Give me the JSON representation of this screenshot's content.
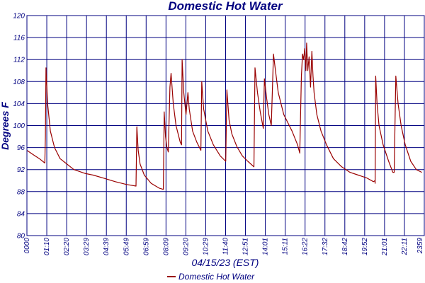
{
  "chart_data": {
    "type": "line",
    "title": "Domestic Hot Water",
    "xlabel": "04/15/23 (EST)",
    "ylabel": "Degrees F",
    "ylim": [
      80,
      120
    ],
    "yticks": [
      "80",
      "84",
      "88",
      "92",
      "96",
      "100",
      "104",
      "108",
      "112",
      "116",
      "120"
    ],
    "xlim": [
      "00:00",
      "23:59"
    ],
    "xtick_labels": [
      "0000",
      "01:10",
      "02:20",
      "03:29",
      "04:39",
      "05:49",
      "06:59",
      "08:09",
      "09:20",
      "10:29",
      "11:40",
      "12:51",
      "14:01",
      "15:11",
      "16:22",
      "17:32",
      "18:42",
      "19:52",
      "21:01",
      "22:11",
      "2359"
    ],
    "grid": true,
    "legend": "bottom-center",
    "colors": {
      "line": "#990000",
      "grid": "#000080",
      "text": "#000080"
    },
    "series": [
      {
        "name": "Domestic Hot Water",
        "points": [
          [
            "00:00",
            95.5
          ],
          [
            "00:20",
            94.8
          ],
          [
            "00:45",
            94
          ],
          [
            "01:05",
            93.2
          ],
          [
            "01:07",
            98
          ],
          [
            "01:09",
            110.5
          ],
          [
            "01:15",
            104
          ],
          [
            "01:25",
            99
          ],
          [
            "01:40",
            96
          ],
          [
            "02:00",
            94
          ],
          [
            "02:20",
            93.2
          ],
          [
            "02:50",
            92
          ],
          [
            "03:30",
            91.3
          ],
          [
            "04:00",
            91
          ],
          [
            "04:40",
            90.4
          ],
          [
            "05:20",
            89.8
          ],
          [
            "06:00",
            89.3
          ],
          [
            "06:35",
            89
          ],
          [
            "06:38",
            99.8
          ],
          [
            "06:43",
            95.5
          ],
          [
            "06:50",
            93
          ],
          [
            "07:05",
            91
          ],
          [
            "07:30",
            89.5
          ],
          [
            "08:00",
            88.6
          ],
          [
            "08:14",
            88.4
          ],
          [
            "08:17",
            102.5
          ],
          [
            "08:22",
            98
          ],
          [
            "08:27",
            96
          ],
          [
            "08:32",
            95.2
          ],
          [
            "08:38",
            107
          ],
          [
            "08:42",
            109.5
          ],
          [
            "08:50",
            104
          ],
          [
            "09:00",
            100
          ],
          [
            "09:15",
            97
          ],
          [
            "09:20",
            96.5
          ],
          [
            "09:22",
            112
          ],
          [
            "09:28",
            106
          ],
          [
            "09:36",
            102
          ],
          [
            "09:43",
            106
          ],
          [
            "09:48",
            103
          ],
          [
            "10:00",
            99
          ],
          [
            "10:15",
            97
          ],
          [
            "10:30",
            95.5
          ],
          [
            "10:33",
            108
          ],
          [
            "10:40",
            103
          ],
          [
            "10:55",
            99
          ],
          [
            "11:15",
            96.5
          ],
          [
            "11:40",
            94.5
          ],
          [
            "12:00",
            93.5
          ],
          [
            "12:04",
            106.5
          ],
          [
            "12:12",
            101
          ],
          [
            "12:22",
            98.5
          ],
          [
            "12:40",
            96.2
          ],
          [
            "13:00",
            94.5
          ],
          [
            "13:20",
            93.5
          ],
          [
            "13:42",
            92.5
          ],
          [
            "13:46",
            110.5
          ],
          [
            "13:55",
            106
          ],
          [
            "14:05",
            102.5
          ],
          [
            "14:16",
            99.5
          ],
          [
            "14:20",
            108.5
          ],
          [
            "14:28",
            105
          ],
          [
            "14:36",
            102
          ],
          [
            "14:45",
            100
          ],
          [
            "14:53",
            113
          ],
          [
            "15:00",
            110
          ],
          [
            "15:10",
            106
          ],
          [
            "15:30",
            102
          ],
          [
            "16:00",
            99
          ],
          [
            "16:20",
            96.5
          ],
          [
            "16:28",
            95
          ],
          [
            "16:34",
            109
          ],
          [
            "16:38",
            113
          ],
          [
            "16:42",
            112
          ],
          [
            "16:46",
            114
          ],
          [
            "16:50",
            110
          ],
          [
            "16:53",
            115
          ],
          [
            "16:57",
            110
          ],
          [
            "17:02",
            112.5
          ],
          [
            "17:07",
            107
          ],
          [
            "17:12",
            113.5
          ],
          [
            "17:16",
            109
          ],
          [
            "17:20",
            106
          ],
          [
            "17:30",
            102
          ],
          [
            "17:45",
            99
          ],
          [
            "18:05",
            96.5
          ],
          [
            "18:30",
            94
          ],
          [
            "19:00",
            92.5
          ],
          [
            "19:30",
            91.5
          ],
          [
            "20:00",
            91
          ],
          [
            "20:30",
            90.5
          ],
          [
            "20:55",
            89.8
          ],
          [
            "21:00",
            90
          ],
          [
            "21:01",
            89.5
          ],
          [
            "21:03",
            109
          ],
          [
            "21:08",
            104
          ],
          [
            "21:15",
            100
          ],
          [
            "21:30",
            96.5
          ],
          [
            "21:50",
            93.5
          ],
          [
            "22:05",
            91.5
          ],
          [
            "22:10",
            91.5
          ],
          [
            "22:16",
            109
          ],
          [
            "22:24",
            104
          ],
          [
            "22:35",
            100
          ],
          [
            "22:50",
            96.5
          ],
          [
            "23:10",
            93.5
          ],
          [
            "23:30",
            92
          ],
          [
            "23:50",
            91.5
          ]
        ]
      }
    ]
  }
}
